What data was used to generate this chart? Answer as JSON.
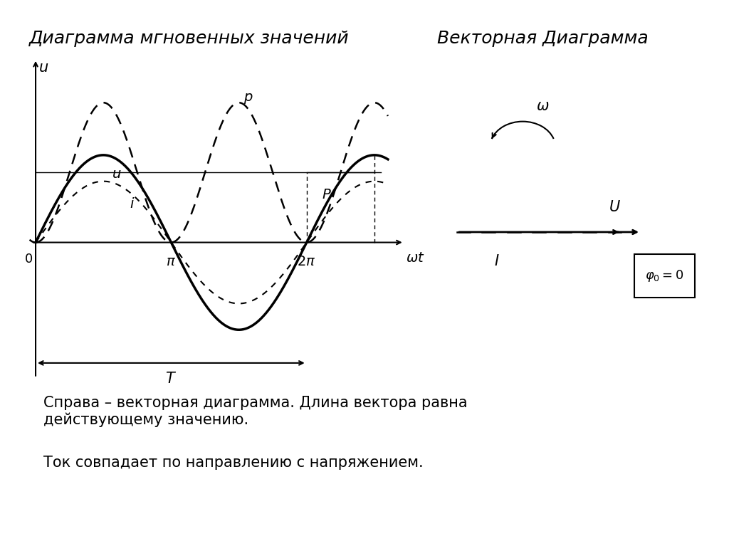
{
  "title_left": "Диаграмма мгновенных значений",
  "title_right": "Векторная Диаграмма",
  "text1": "Справа – векторная диаграмма. Длина вектора равна\nдействующему значению.",
  "text2": "Ток совпадает по направлению с напряжением.",
  "bg_color": "#ffffff",
  "line_color": "#000000",
  "font_size_title": 18,
  "font_size_labels": 13,
  "font_size_text": 15
}
